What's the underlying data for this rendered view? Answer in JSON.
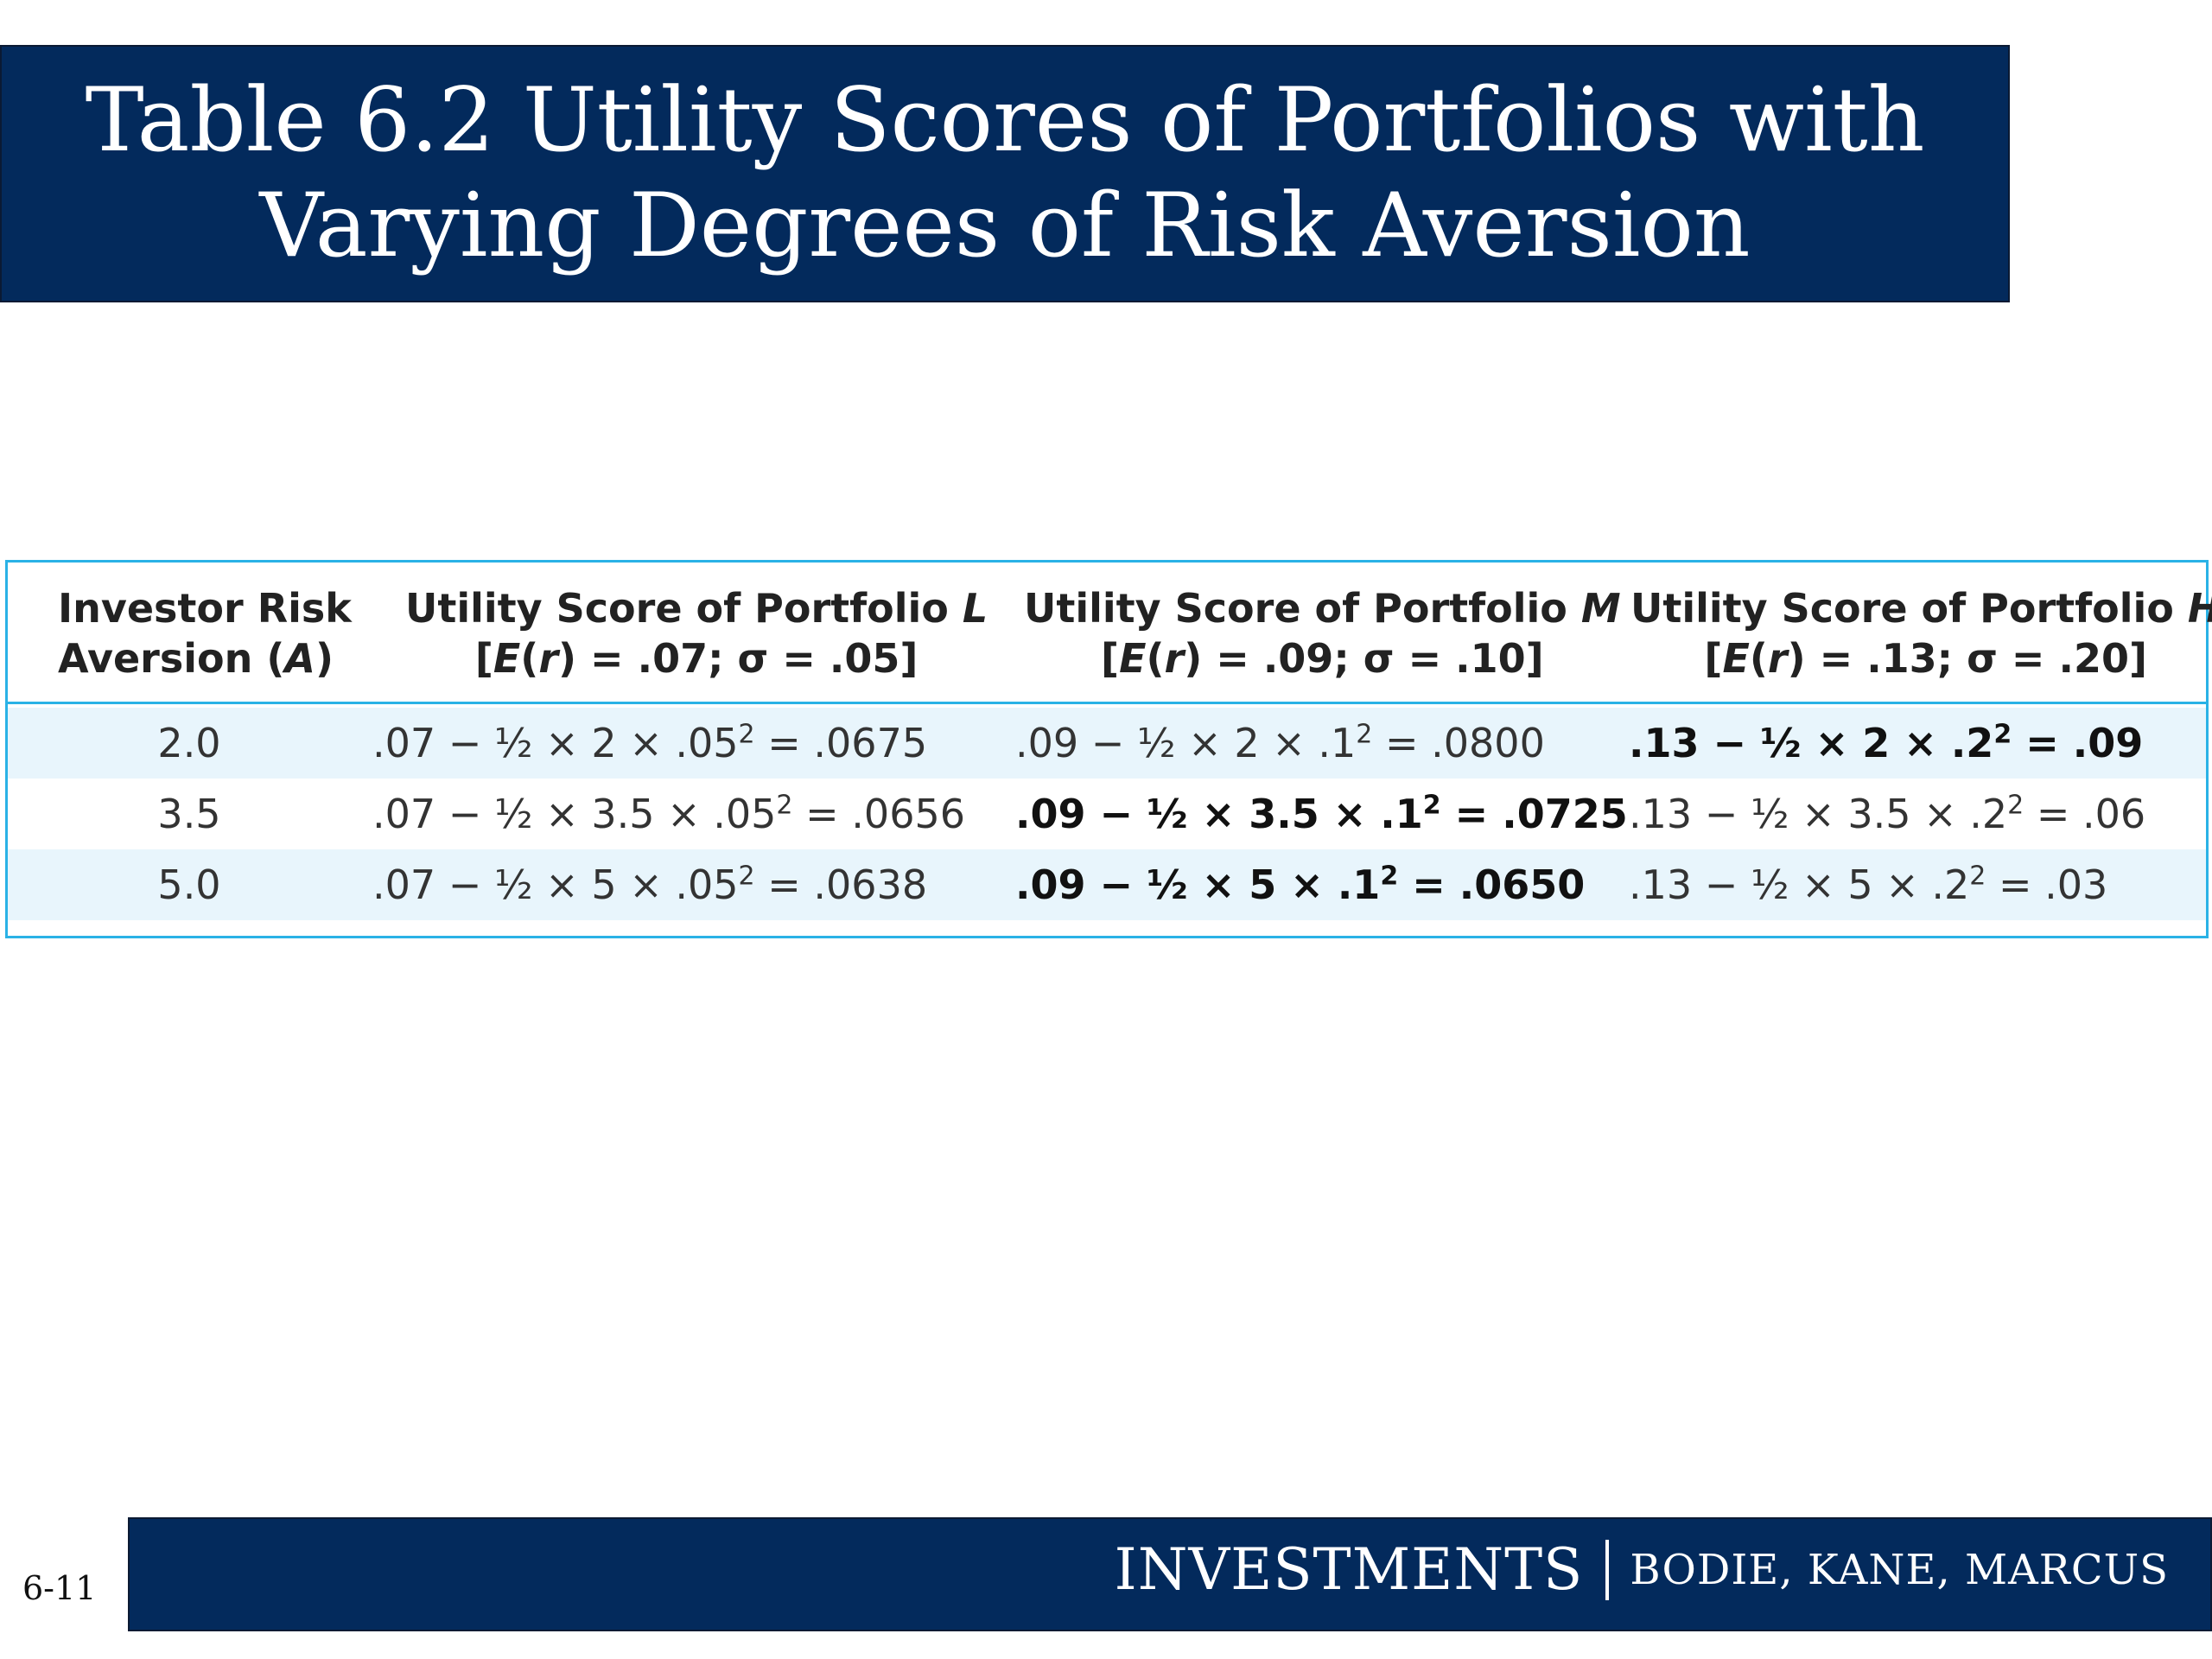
{
  "title": {
    "line1": "Table 6.2 Utility Scores of Portfolios with",
    "line2": "Varying Degrees of Risk Aversion"
  },
  "table": {
    "headers": [
      {
        "line1": "Investor Risk",
        "line2_pre": "Aversion (",
        "line2_var": "A",
        "line2_post": ")"
      },
      {
        "line1_pre": "Utility Score of Portfolio ",
        "line1_var": "L",
        "line2_pre": "[",
        "line2_var1": "E",
        "line2_mid": "(",
        "line2_var2": "r",
        "line2_post": ") = .07; σ = .05]"
      },
      {
        "line1_pre": "Utility Score of Portfolio ",
        "line1_var": "M",
        "line2_pre": "[",
        "line2_var1": "E",
        "line2_mid": "(",
        "line2_var2": "r",
        "line2_post": ") = .09; σ = .10]"
      },
      {
        "line1_pre": "Utility Score of Portfolio ",
        "line1_var": "H",
        "line2_pre": "[",
        "line2_var1": "E",
        "line2_mid": "(",
        "line2_var2": "r",
        "line2_post": ") = .13; σ = .20]"
      }
    ],
    "rows": [
      {
        "a": "2.0",
        "l": {
          "pre": ".07 − ½ × 2 × .05",
          "sup": "2",
          "post": " = .0675"
        },
        "m": {
          "pre": ".09 − ½ × 2 × .1",
          "sup": "2",
          "post": " = .0800"
        },
        "h": {
          "pre": ".13 − ½ × 2 × .2",
          "sup": "2",
          "post": " = .09"
        }
      },
      {
        "a": "3.5",
        "l": {
          "pre": ".07 − ½ × 3.5 × .05",
          "sup": "2",
          "post": " = .0656"
        },
        "m": {
          "pre": ".09 − ½ × 3.5 × .1",
          "sup": "2",
          "post": " = .0725"
        },
        "h": {
          "pre": ".13 − ½ × 3.5 × .2",
          "sup": "2",
          "post": " = .06"
        }
      },
      {
        "a": "5.0",
        "l": {
          "pre": ".07 − ½ × 5 × .05",
          "sup": "2",
          "post": " = .0638"
        },
        "m": {
          "pre": ".09 − ½ × 5 × .1",
          "sup": "2",
          "post": " = .0650"
        },
        "h": {
          "pre": ".13 − ½ × 5 × .2",
          "sup": "2",
          "post": " = .03"
        }
      }
    ]
  },
  "footer": {
    "slide_number": "6-11",
    "brand": "INVESTMENTS",
    "authors": "BODIE, KANE, MARCUS"
  },
  "colors": {
    "banner": "#032a5c",
    "table_border": "#2ab2e6",
    "row_shade": "#e8f5fc"
  }
}
